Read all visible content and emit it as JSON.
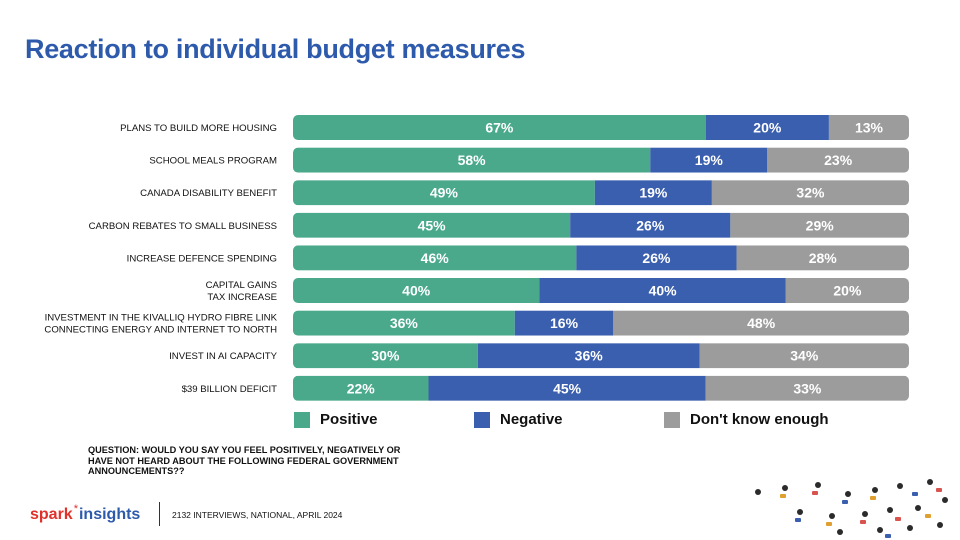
{
  "page": {
    "title": "Reaction to individual budget measures"
  },
  "chart_data": {
    "type": "bar",
    "orientation": "horizontal",
    "stacked": true,
    "categories": [
      "PLANS TO BUILD MORE HOUSING",
      "SCHOOL MEALS PROGRAM",
      "CANADA DISABILITY BENEFIT",
      "CARBON REBATES TO SMALL BUSINESS",
      "INCREASE DEFENCE SPENDING",
      "CAPITAL GAINS\nTAX INCREASE",
      "INVESTMENT IN THE KIVALLIQ HYDRO FIBRE LINK\nCONNECTING ENERGY AND INTERNET TO NORTH",
      "INVEST IN AI CAPACITY",
      "$39 BILLION DEFICIT"
    ],
    "series": [
      {
        "name": "Positive",
        "color": "#4aa98b",
        "values": [
          67,
          58,
          49,
          45,
          46,
          40,
          36,
          30,
          22
        ]
      },
      {
        "name": "Negative",
        "color": "#3a5fae",
        "values": [
          20,
          19,
          19,
          26,
          26,
          40,
          16,
          36,
          45
        ]
      },
      {
        "name": "Don't know enough",
        "color": "#9c9c9c",
        "values": [
          13,
          23,
          32,
          29,
          28,
          20,
          48,
          34,
          33
        ]
      }
    ],
    "value_suffix": "%",
    "xlim": [
      0,
      100
    ],
    "grid": false,
    "legend": "bottom"
  },
  "footer": {
    "question": "QUESTION: WOULD YOU SAY YOU FEEL POSITIVELY, NEGATIVELY OR HAVE NOT HEARD ABOUT THE FOLLOWING FEDERAL GOVERNMENT ANNOUNCEMENTS??",
    "logo_spark": "spark",
    "logo_star": "*",
    "logo_insights": "insights",
    "source": "2132 INTERVIEWS, NATIONAL, APRIL 2024"
  },
  "icons": {
    "crowd": "crowd-people-icon"
  }
}
